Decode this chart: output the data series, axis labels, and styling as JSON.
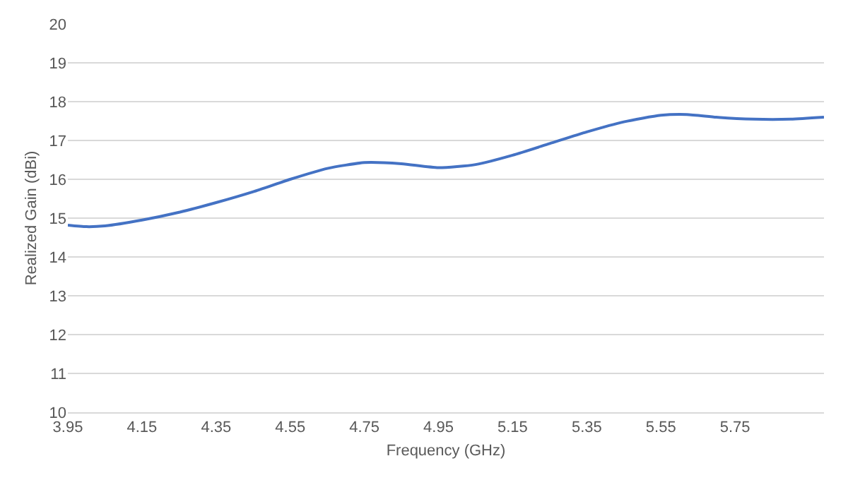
{
  "chart_data": {
    "type": "line",
    "xlabel": "Frequency (GHz)",
    "ylabel": "Realized Gain (dBi)",
    "x": [
      3.95,
      4.0,
      4.05,
      4.15,
      4.25,
      4.35,
      4.45,
      4.55,
      4.65,
      4.75,
      4.85,
      4.95,
      5.05,
      5.15,
      5.25,
      5.35,
      5.45,
      5.55,
      5.62,
      5.7,
      5.8,
      5.9,
      5.99
    ],
    "series": [
      {
        "color": "#4472c4",
        "values": [
          14.82,
          14.78,
          14.8,
          14.95,
          15.15,
          15.4,
          15.68,
          16.0,
          16.28,
          16.43,
          16.4,
          16.3,
          16.38,
          16.62,
          16.92,
          17.22,
          17.48,
          17.65,
          17.67,
          17.6,
          17.55,
          17.55,
          17.6
        ]
      }
    ],
    "xlim": [
      3.95,
      5.99
    ],
    "xticks": [
      3.95,
      4.15,
      4.35,
      4.55,
      4.75,
      4.95,
      5.15,
      5.35,
      5.55,
      5.75
    ],
    "ylim": [
      10,
      20
    ],
    "yticks": [
      10,
      11,
      12,
      13,
      14,
      15,
      16,
      17,
      18,
      19,
      20
    ],
    "grid": "y",
    "marker": "none",
    "line_style": "solid"
  }
}
